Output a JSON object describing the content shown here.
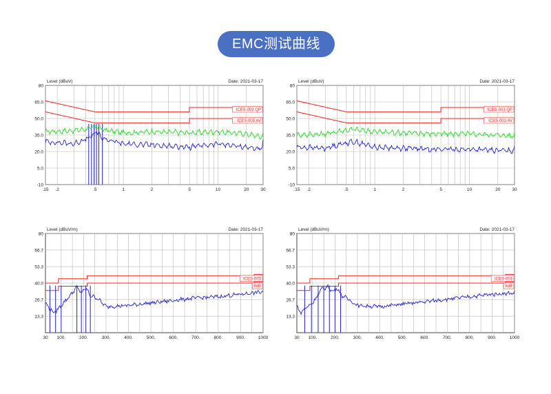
{
  "page": {
    "title": "EMC测试曲线"
  },
  "chart_data": [
    {
      "type": "line",
      "ylabel": "Level (dBuV)",
      "date": "2021-03-17",
      "xscale": "log",
      "xlim": [
        0.15,
        30
      ],
      "ylim": [
        -10,
        80
      ],
      "yticks": [
        -10,
        5.0,
        20.0,
        35.0,
        50.0,
        65.0,
        80
      ],
      "ytick_labels": [
        "-10",
        "5.0",
        "20.0",
        "35.0",
        "50.0",
        "65.0",
        "80"
      ],
      "xticks": [
        0.15,
        0.2,
        0.5,
        1,
        2,
        5,
        10,
        20,
        30
      ],
      "xtick_labels": [
        ".15",
        ".2",
        ".5",
        "1",
        "2",
        "5",
        "10",
        "20",
        "30"
      ],
      "limits": [
        {
          "name": "ICES-003 QP",
          "points": [
            [
              0.15,
              66
            ],
            [
              0.5,
              56
            ],
            [
              5,
              56
            ],
            [
              5,
              60
            ],
            [
              30,
              60
            ]
          ],
          "color": "#ff2020"
        },
        {
          "name": "ICES-003 AV",
          "points": [
            [
              0.15,
              56
            ],
            [
              0.5,
              46
            ],
            [
              5,
              46
            ],
            [
              5,
              50
            ],
            [
              30,
              50
            ]
          ],
          "color": "#ff2020"
        }
      ],
      "series": [
        {
          "role": "green",
          "color": "#22dd22",
          "points": [
            [
              0.15,
              38
            ],
            [
              0.3,
              39
            ],
            [
              0.45,
              41
            ],
            [
              0.52,
              43
            ],
            [
              0.6,
              40
            ],
            [
              1,
              37
            ],
            [
              2,
              38
            ],
            [
              5,
              37
            ],
            [
              10,
              38
            ],
            [
              20,
              36
            ],
            [
              30,
              33
            ]
          ]
        },
        {
          "role": "blue",
          "color": "#2222cc",
          "points": [
            [
              0.15,
              29
            ],
            [
              0.3,
              27
            ],
            [
              0.45,
              33
            ],
            [
              0.52,
              38
            ],
            [
              0.6,
              32
            ],
            [
              1,
              27
            ],
            [
              2,
              26
            ],
            [
              5,
              24
            ],
            [
              10,
              27
            ],
            [
              20,
              24
            ],
            [
              30,
              22
            ]
          ]
        }
      ],
      "markers": [
        0.43,
        0.46,
        0.49,
        0.52,
        0.55,
        0.6
      ],
      "limit_labels": [
        "ICES-003 QP",
        "ICES-003 AV"
      ]
    },
    {
      "type": "line",
      "ylabel": "Level (dBuV)",
      "date": "2021-03-17",
      "xscale": "log",
      "xlim": [
        0.15,
        30
      ],
      "ylim": [
        -10,
        80
      ],
      "yticks": [
        -10,
        5.0,
        20.0,
        35.0,
        50.0,
        65.0,
        80
      ],
      "ytick_labels": [
        "-10",
        "5.0",
        "20.0",
        "35.0",
        "50.0",
        "65.0",
        "80"
      ],
      "xticks": [
        0.15,
        0.2,
        0.5,
        1,
        2,
        5,
        10,
        20,
        30
      ],
      "xtick_labels": [
        ".15",
        ".2",
        ".5",
        "1",
        "2",
        "5",
        "10",
        "20",
        "30"
      ],
      "limits": [
        {
          "name": "ICES-003 QP",
          "points": [
            [
              0.15,
              66
            ],
            [
              0.5,
              56
            ],
            [
              5,
              56
            ],
            [
              5,
              60
            ],
            [
              30,
              60
            ]
          ],
          "color": "#ff2020"
        },
        {
          "name": "ICES-003 AV",
          "points": [
            [
              0.15,
              56
            ],
            [
              0.5,
              46
            ],
            [
              5,
              46
            ],
            [
              5,
              50
            ],
            [
              30,
              50
            ]
          ],
          "color": "#ff2020"
        }
      ],
      "series": [
        {
          "role": "green",
          "color": "#22dd22",
          "points": [
            [
              0.15,
              35
            ],
            [
              0.3,
              36
            ],
            [
              0.45,
              39
            ],
            [
              0.6,
              40
            ],
            [
              1,
              38
            ],
            [
              2,
              37
            ],
            [
              5,
              36
            ],
            [
              10,
              36
            ],
            [
              20,
              35
            ],
            [
              30,
              34
            ]
          ]
        },
        {
          "role": "blue",
          "color": "#2222cc",
          "points": [
            [
              0.15,
              24
            ],
            [
              0.3,
              23
            ],
            [
              0.45,
              27
            ],
            [
              0.6,
              29
            ],
            [
              1,
              24
            ],
            [
              2,
              23
            ],
            [
              5,
              22
            ],
            [
              10,
              22
            ],
            [
              20,
              21
            ],
            [
              30,
              21
            ]
          ]
        }
      ],
      "markers": [],
      "limit_labels": [
        "ICES-003 QP",
        "ICES-003 AV"
      ]
    },
    {
      "type": "line",
      "ylabel": "Level (dBuV/m)",
      "date": "2021-03-17",
      "xscale": "linear",
      "xlim": [
        30,
        1000
      ],
      "ylim": [
        0,
        80
      ],
      "yticks": [
        13.3,
        26.7,
        40.0,
        53.3,
        66.7,
        80
      ],
      "ytick_labels": [
        "13.3",
        "26.7",
        "40.0",
        "53.3",
        "66.7",
        "80"
      ],
      "xticks": [
        30,
        100,
        200,
        300,
        400,
        500,
        600,
        700,
        800,
        900,
        1000
      ],
      "xtick_labels": [
        "30",
        "100.",
        "200.",
        "300.",
        "400.",
        "500.",
        "600.",
        "700.",
        "800.",
        "900.",
        "1000"
      ],
      "limits": [
        {
          "name": "ICES-003",
          "points": [
            [
              30,
              40
            ],
            [
              88,
              40
            ],
            [
              88,
              43.5
            ],
            [
              216,
              43.5
            ],
            [
              216,
              46
            ],
            [
              960,
              46
            ],
            [
              960,
              47
            ],
            [
              1000,
              47
            ]
          ],
          "color": "#ff2020"
        },
        {
          "name": "6dB",
          "points": [
            [
              30,
              34
            ],
            [
              88,
              34
            ],
            [
              88,
              37.5
            ],
            [
              216,
              37.5
            ],
            [
              216,
              40
            ],
            [
              960,
              40
            ],
            [
              960,
              41
            ],
            [
              1000,
              41
            ]
          ],
          "color": "#ff2020"
        }
      ],
      "series": [
        {
          "role": "blue",
          "color": "#2222cc",
          "points": [
            [
              30,
              24
            ],
            [
              45,
              20
            ],
            [
              70,
              16
            ],
            [
              100,
              22
            ],
            [
              140,
              30
            ],
            [
              170,
              37
            ],
            [
              190,
              32
            ],
            [
              210,
              36
            ],
            [
              230,
              30
            ],
            [
              260,
              28
            ],
            [
              300,
              21
            ],
            [
              400,
              22
            ],
            [
              500,
              24
            ],
            [
              600,
              26
            ],
            [
              700,
              28
            ],
            [
              800,
              29
            ],
            [
              900,
              31
            ],
            [
              1000,
              33
            ]
          ]
        }
      ],
      "markers": [
        50,
        75,
        100,
        170,
        190,
        210,
        230
      ],
      "limit_labels": [
        "ICES-003",
        "6dB"
      ]
    },
    {
      "type": "line",
      "ylabel": "Level (dBuV/m)",
      "date": "2021-03-17",
      "xscale": "linear",
      "xlim": [
        30,
        1000
      ],
      "ylim": [
        0,
        80
      ],
      "yticks": [
        13.3,
        26.7,
        40.0,
        53.3,
        66.7,
        80
      ],
      "ytick_labels": [
        "13.3",
        "26.7",
        "40.0",
        "53.3",
        "66.7",
        "80"
      ],
      "xticks": [
        30,
        100,
        200,
        300,
        400,
        500,
        600,
        700,
        800,
        900,
        1000
      ],
      "xtick_labels": [
        "30",
        "100.",
        "200.",
        "300.",
        "400.",
        "500.",
        "600.",
        "700.",
        "800.",
        "900.",
        "1000"
      ],
      "limits": [
        {
          "name": "ICES-003",
          "points": [
            [
              30,
              40
            ],
            [
              88,
              40
            ],
            [
              88,
              43.5
            ],
            [
              216,
              43.5
            ],
            [
              216,
              46
            ],
            [
              960,
              46
            ],
            [
              960,
              47
            ],
            [
              1000,
              47
            ]
          ],
          "color": "#ff2020"
        },
        {
          "name": "6dB",
          "points": [
            [
              30,
              34
            ],
            [
              88,
              34
            ],
            [
              88,
              37.5
            ],
            [
              216,
              37.5
            ],
            [
              216,
              40
            ],
            [
              960,
              40
            ],
            [
              960,
              41
            ],
            [
              1000,
              41
            ]
          ],
          "color": "#ff2020"
        }
      ],
      "series": [
        {
          "role": "blue",
          "color": "#2222cc",
          "points": [
            [
              30,
              22
            ],
            [
              45,
              16
            ],
            [
              70,
              20
            ],
            [
              100,
              24
            ],
            [
              140,
              35
            ],
            [
              170,
              37
            ],
            [
              190,
              33
            ],
            [
              210,
              36
            ],
            [
              230,
              30
            ],
            [
              260,
              27
            ],
            [
              300,
              22
            ],
            [
              400,
              21
            ],
            [
              500,
              23
            ],
            [
              600,
              25
            ],
            [
              700,
              27
            ],
            [
              800,
              29
            ],
            [
              900,
              31
            ],
            [
              1000,
              32
            ]
          ]
        }
      ],
      "markers": [
        65,
        95,
        125,
        150,
        175,
        200,
        225
      ],
      "limit_labels": [
        "ICES-003",
        "6dB"
      ]
    }
  ]
}
